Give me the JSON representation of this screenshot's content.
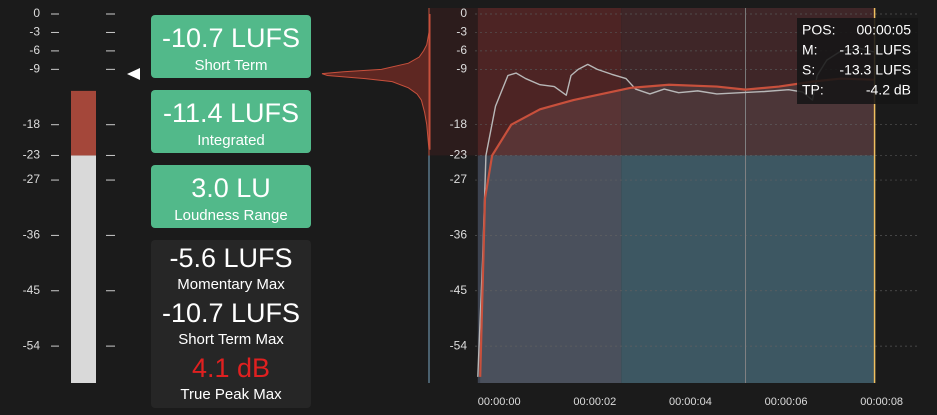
{
  "meter": {
    "range": [
      -60,
      0
    ],
    "scale_ticks": [
      0,
      -3,
      -6,
      -9,
      -18,
      -23,
      -27,
      -36,
      -45,
      -54
    ],
    "value": -12.5,
    "reference_level": -23
  },
  "stats": [
    {
      "value": "-10.7 LUFS",
      "label": "Short Term"
    },
    {
      "value": "-11.4 LUFS",
      "label": "Integrated"
    },
    {
      "value": "3.0 LU",
      "label": "Loudness Range"
    }
  ],
  "max_stats": [
    {
      "value": "-5.6 LUFS",
      "label": "Momentary Max"
    },
    {
      "value": "-10.7 LUFS",
      "label": "Short Term Max"
    },
    {
      "value": "4.1 dB",
      "label": "True Peak Max"
    }
  ],
  "histogram": {
    "levels": [
      -22,
      -20,
      -18,
      -16,
      -14,
      -13,
      -12,
      -11,
      -10.5,
      -10,
      -9.7,
      -9.4,
      -9,
      -8,
      -7,
      -6,
      -5,
      -3,
      0
    ],
    "counts": [
      1,
      2,
      3,
      5,
      8,
      12,
      20,
      35,
      60,
      95,
      100,
      80,
      45,
      20,
      10,
      6,
      3,
      1,
      0
    ]
  },
  "chart_data": {
    "type": "line",
    "xlim": [
      -1,
      9.25
    ],
    "ylim": [
      -60,
      0
    ],
    "yticks": [
      0,
      -3,
      -6,
      -9,
      -18,
      -23,
      -27,
      -36,
      -45,
      -54
    ],
    "xticks": [
      {
        "value": 0,
        "label": "00:00:00"
      },
      {
        "value": 2,
        "label": "00:00:02"
      },
      {
        "value": 4,
        "label": "00:00:04"
      },
      {
        "value": 6,
        "label": "00:00:06"
      },
      {
        "value": 8,
        "label": "00:00:08"
      }
    ],
    "reference_level": -23,
    "section_end": 3,
    "marker_x": 5.6,
    "cursor_x": 8.3,
    "series": [
      {
        "color": "#b8b8b8",
        "x": [
          0,
          0.1,
          0.17,
          0.37,
          0.63,
          0.8,
          1.0,
          1.3,
          1.6,
          1.85,
          1.95,
          2.1,
          2.3,
          2.5,
          2.8,
          3.1,
          3.3,
          3.6,
          3.9,
          4.2,
          4.6,
          5.0,
          5.5,
          6.0,
          6.5,
          6.8,
          7.0,
          7.1,
          7.3,
          7.6,
          8.0,
          8.3
        ],
        "values": [
          -59,
          -40,
          -23,
          -15,
          -10,
          -9.6,
          -10.5,
          -11.5,
          -11.8,
          -13.2,
          -10,
          -9,
          -8.2,
          -9,
          -9.8,
          -10.5,
          -12.2,
          -13,
          -12.2,
          -12.8,
          -12.5,
          -13,
          -12.8,
          -12.6,
          -12.3,
          -12.7,
          -14,
          -10,
          -7.5,
          -6,
          -5.6,
          -6.2
        ]
      },
      {
        "color": "#c8503c",
        "x": [
          0.05,
          0.15,
          0.3,
          0.7,
          1.3,
          2.0,
          2.6,
          3.2,
          4.0,
          5.0,
          5.6,
          6.3,
          7.0,
          7.6,
          8.3
        ],
        "values": [
          -59,
          -30,
          -23,
          -18,
          -15.5,
          -14,
          -13,
          -12,
          -11.5,
          -11.8,
          -12.3,
          -11.8,
          -11,
          -10.5,
          -10.7
        ]
      }
    ]
  },
  "info": [
    {
      "key": "POS:",
      "value": "00:00:05"
    },
    {
      "key": "M:",
      "value": "-13.1 LUFS"
    },
    {
      "key": "S:",
      "value": "-13.3 LUFS"
    },
    {
      "key": "TP:",
      "value": "-4.2 dB"
    }
  ]
}
